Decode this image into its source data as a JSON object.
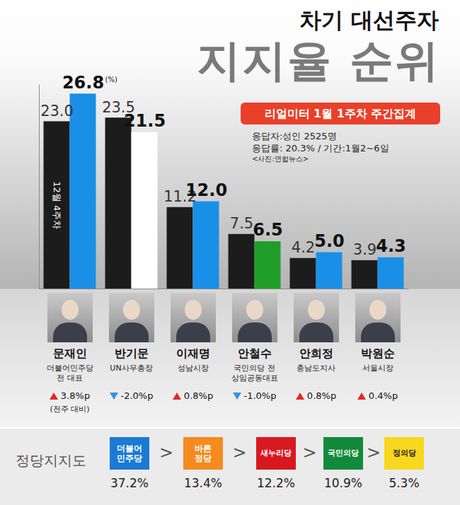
{
  "chart_data": {
    "type": "bar",
    "title": "차기 대선주자",
    "subtitle": "지지율 순위",
    "badge": "리얼미터 1월 1주차 주간집계",
    "notes": [
      "응답자:성인 2525명",
      "응답률: 20.3% / 기간:1월2~6일",
      "<사진:연합뉴스>"
    ],
    "unit": "(%)",
    "categories": [
      "문재인",
      "반기문",
      "이재명",
      "안철수",
      "안희정",
      "박원순"
    ],
    "roles": [
      [
        "더불어민주당",
        "전 대표"
      ],
      [
        "UN사무총장"
      ],
      [
        "성남시장"
      ],
      [
        "국민의당 전",
        "상임공동대표"
      ],
      [
        "충남도지사"
      ],
      [
        "서울시장"
      ]
    ],
    "changes": [
      3.8,
      -2.0,
      0.8,
      -1.0,
      0.8,
      0.4
    ],
    "change_labels": [
      "3.8%p",
      "-2.0%p",
      "0.8%p",
      "-1.0%p",
      "0.8%p",
      "0.4%p"
    ],
    "change_note": "(전주 대비)",
    "series": [
      {
        "name": "12월 4주차",
        "color": "#1c1c1c",
        "values": [
          23.0,
          23.5,
          11.2,
          7.5,
          4.2,
          3.9
        ],
        "value_labels": [
          "23.0",
          "23.5",
          "11.2",
          "7.5",
          "4.2",
          "3.9"
        ]
      },
      {
        "colors": [
          "#1a8fe8",
          "#ffffff",
          "#1a8fe8",
          "#1f9e2a",
          "#1a8fe8",
          "#1a8fe8"
        ],
        "values": [
          26.8,
          21.5,
          12.0,
          6.5,
          5.0,
          4.3
        ],
        "value_labels": [
          "26.8",
          "21.5",
          "12.0",
          "6.5",
          "5.0",
          "4.3"
        ]
      }
    ],
    "ylim": [
      0,
      28
    ],
    "tick_labels": false,
    "data_labels": true,
    "party_support": {
      "title": "정당지지도",
      "separator": ">",
      "parties": [
        {
          "name": [
            "더불어",
            "민주당"
          ],
          "color": "#1a7ad4",
          "share": "37.2%"
        },
        {
          "name": [
            "바른",
            "정당"
          ],
          "color": "#f58a1f",
          "share": "13.4%"
        },
        {
          "name": [
            "새누리당"
          ],
          "color": "#d7191f",
          "share": "12.2%"
        },
        {
          "name": [
            "국민의당"
          ],
          "color": "#118a3c",
          "share": "10.9%"
        },
        {
          "name": [
            "정의당"
          ],
          "color": "#f7d81e",
          "share": "5.3%"
        }
      ]
    }
  }
}
